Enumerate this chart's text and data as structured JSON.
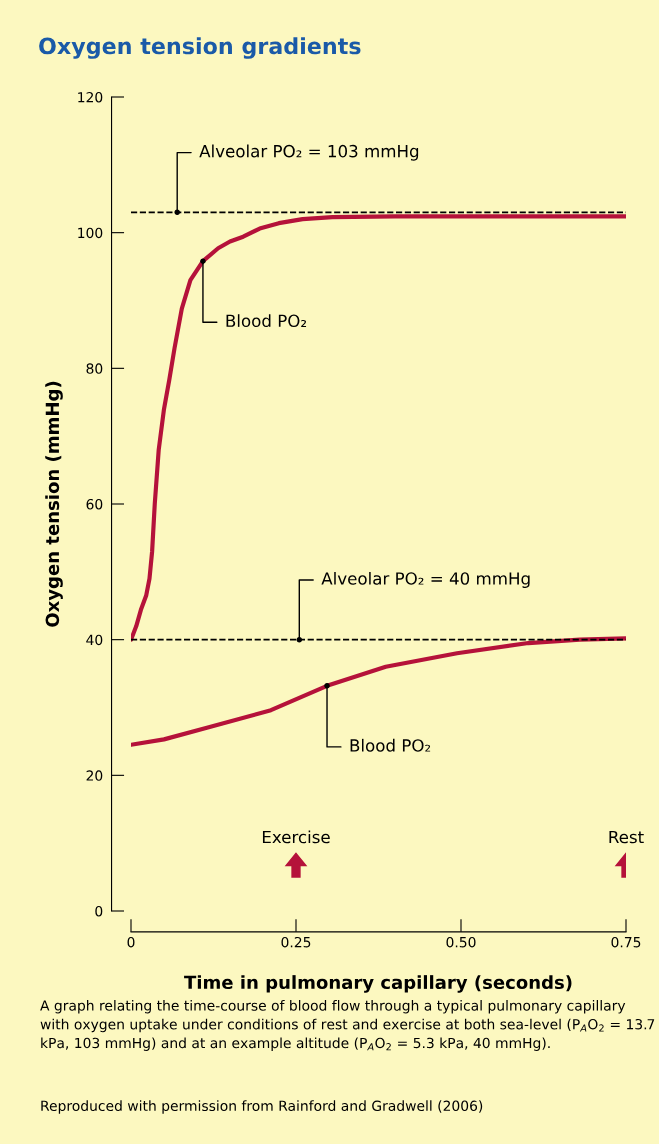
{
  "chart_data": {
    "type": "line",
    "title": "Oxygen tension gradients",
    "xlabel": "Time in pulmonary capillary (seconds)",
    "ylabel": "Oxygen tension (mmHg)",
    "series": [
      {
        "color": "#b5123a",
        "x": [
          0,
          0.008,
          0.015,
          0.023,
          0.028,
          0.032,
          0.036,
          0.042,
          0.05,
          0.058,
          0.066,
          0.077,
          0.09,
          0.109,
          0.132,
          0.15,
          0.17,
          0.195,
          0.224,
          0.26,
          0.305,
          0.4,
          0.5,
          0.6,
          0.75
        ],
        "values": [
          40,
          42,
          44.4,
          46.5,
          49,
          53,
          60,
          68,
          74,
          78.3,
          83,
          88.8,
          93,
          95.8,
          97.7,
          98.7,
          99.4,
          100.6,
          101.4,
          102,
          102.3,
          102.4,
          102.4,
          102.4,
          102.4
        ]
      },
      {
        "color": "#b5123a",
        "x": [
          0,
          0.05,
          0.115,
          0.212,
          0.297,
          0.386,
          0.494,
          0.602,
          0.68,
          0.75
        ],
        "values": [
          24.5,
          25.3,
          27.0,
          29.6,
          33.2,
          36.0,
          38.0,
          39.5,
          40.0,
          40.2
        ]
      }
    ],
    "xlim": [
      0,
      0.75
    ],
    "ylim": [
      0,
      120
    ],
    "xticks": [
      0,
      0.25,
      {
        "value": 0.5,
        "label": "0.50"
      },
      0.75
    ],
    "yticks": [
      0,
      20,
      40,
      60,
      80,
      100,
      120
    ],
    "ref_lines": [
      {
        "axis": "y",
        "value": 103,
        "color": "#000000",
        "line_style": "dashed"
      },
      {
        "axis": "y",
        "value": 40,
        "color": "#000000",
        "line_style": "dashed"
      }
    ],
    "annotations": [
      {
        "text": "Alveolar PO₂ = 103 mmHg",
        "x": 0.07,
        "y": 103
      },
      {
        "text": "Blood PO₂",
        "x": 0.109,
        "y": 95.8
      },
      {
        "text": "Alveolar PO₂ = 40 mmHg",
        "x": 0.255,
        "y": 40
      },
      {
        "text": "Blood PO₂",
        "x": 0.297,
        "y": 33.2
      },
      "Exercise",
      "Rest",
      "A graph relating the time-course of blood flow through a typical pulmonary capillary with oxygen uptake under conditions of rest and exercise at both sea-level (P$_{A}$O$_{2}$ = 13.7 kPa, 103 mmHg) and at an example altitude (P$_{A}$O$_{2}$ = 5.3 kPa, 40 mmHg).",
      "Reproduced with permission from Rainford and Gradwell (2006)"
    ],
    "grid": false,
    "legend": false,
    "marker": "none",
    "line_style": "solid"
  }
}
